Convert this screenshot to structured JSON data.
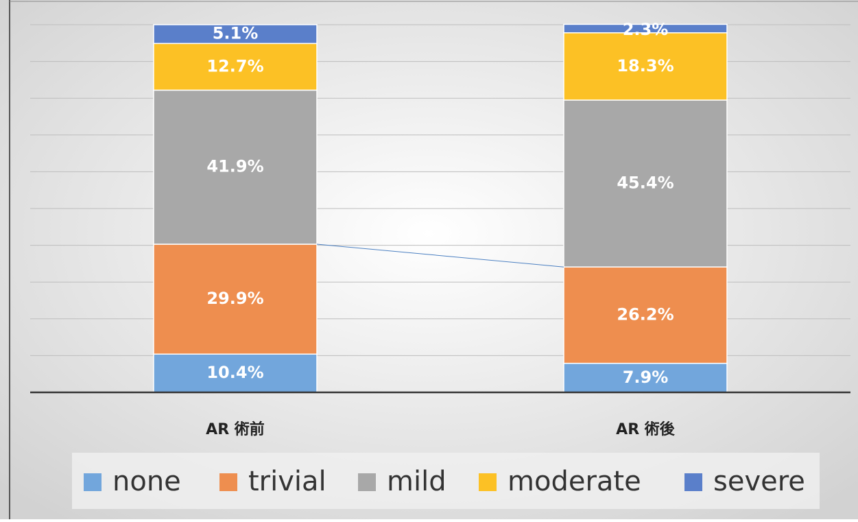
{
  "chart_data": {
    "type": "stacked_bar",
    "categories": [
      "AR 術前",
      "AR 術後"
    ],
    "series": [
      {
        "name": "none",
        "color": "#72a6dc",
        "values": [
          10.4,
          7.9
        ],
        "value_labels": [
          "10.4%",
          "7.9%"
        ]
      },
      {
        "name": "trivial",
        "color": "#ee8e4f",
        "values": [
          29.9,
          26.2
        ],
        "value_labels": [
          "29.9%",
          "26.2%"
        ]
      },
      {
        "name": "mild",
        "color": "#a8a8a8",
        "values": [
          41.9,
          45.4
        ],
        "value_labels": [
          "41.9%",
          "45.4%"
        ]
      },
      {
        "name": "moderate",
        "color": "#fcc125",
        "values": [
          12.7,
          18.3
        ],
        "value_labels": [
          "12.7%",
          "18.3%"
        ]
      },
      {
        "name": "severe",
        "color": "#5a7fca",
        "values": [
          5.1,
          2.3
        ],
        "value_labels": [
          "5.1%",
          "2.3%"
        ]
      }
    ],
    "ylim": [
      0,
      100
    ],
    "yticks": [
      0,
      10,
      20,
      30,
      40,
      50,
      60,
      70,
      80,
      90,
      100
    ],
    "grid": true,
    "legend": "bottom"
  }
}
